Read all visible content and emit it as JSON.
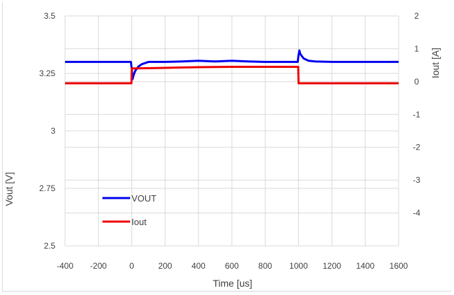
{
  "chart_data": {
    "type": "line",
    "title": "",
    "xlabel": "Time [us]",
    "ylabel_left": "Vout [V]",
    "ylabel_right": "Iout [A]",
    "xlim": [
      -400,
      1600
    ],
    "xticks": [
      "-400",
      "-200",
      "0",
      "200",
      "400",
      "600",
      "800",
      "1000",
      "1200",
      "1400",
      "1600"
    ],
    "ylim_left": [
      2.5,
      3.5
    ],
    "yticks_left": [
      "2.5",
      "2.75",
      "3",
      "3.25",
      "3.5"
    ],
    "ylim_right": [
      -5,
      2
    ],
    "yticks_right": [
      "-4",
      "-3",
      "-2",
      "-1",
      "0",
      "1",
      "2"
    ],
    "grid": true,
    "legend_position": "bottom-left",
    "colors": {
      "vout": "#0000ee",
      "iout": "#ee0000",
      "grid": "#d9d9d9"
    },
    "series": [
      {
        "name": "VOUT",
        "axis": "left",
        "x": [
          -400,
          -300,
          -200,
          -100,
          -5,
          0,
          5,
          10,
          20,
          40,
          60,
          80,
          100,
          200,
          300,
          400,
          500,
          600,
          700,
          800,
          900,
          995,
          1000,
          1005,
          1010,
          1030,
          1060,
          1100,
          1200,
          1300,
          1400,
          1500,
          1600
        ],
        "values": [
          3.3,
          3.3,
          3.3,
          3.3,
          3.3,
          3.27,
          3.225,
          3.24,
          3.26,
          3.28,
          3.29,
          3.295,
          3.3,
          3.3,
          3.302,
          3.305,
          3.302,
          3.305,
          3.302,
          3.3,
          3.3,
          3.3,
          3.33,
          3.35,
          3.335,
          3.315,
          3.305,
          3.302,
          3.3,
          3.3,
          3.3,
          3.3,
          3.3
        ]
      },
      {
        "name": "Iout",
        "axis": "right",
        "x": [
          -400,
          -200,
          -2,
          0,
          200,
          400,
          600,
          800,
          998,
          1000,
          1200,
          1400,
          1600
        ],
        "values": [
          -0.05,
          -0.05,
          -0.05,
          0.4,
          0.42,
          0.44,
          0.45,
          0.45,
          0.45,
          -0.05,
          -0.05,
          -0.05,
          -0.05
        ]
      }
    ]
  }
}
